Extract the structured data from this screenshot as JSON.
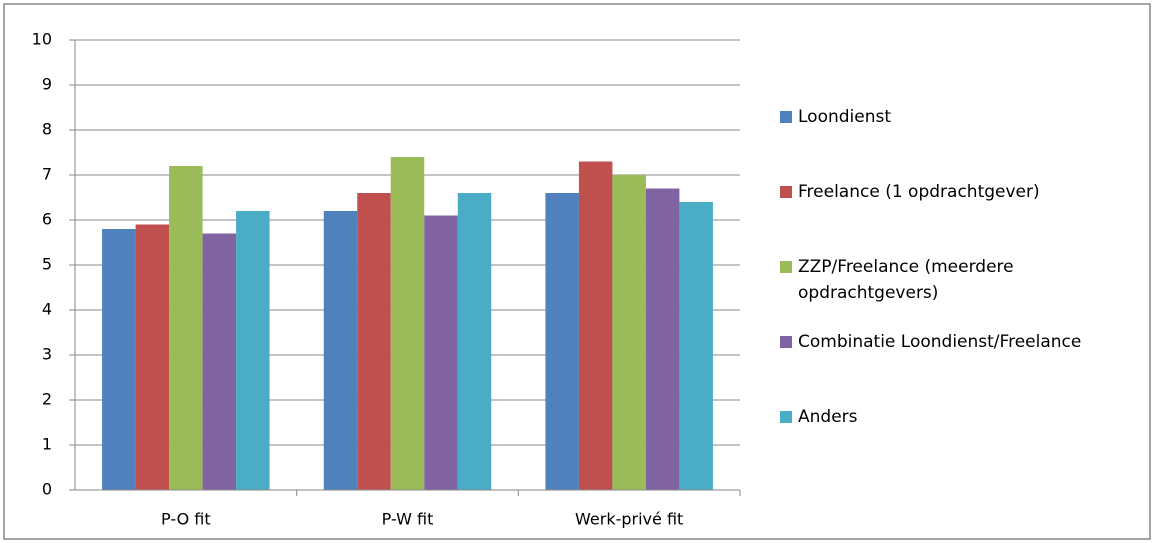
{
  "chart_data": {
    "type": "bar",
    "categories": [
      "P-O fit",
      "P-W fit",
      "Werk-privé fit"
    ],
    "series": [
      {
        "name": "Loondienst",
        "color": "#4f81bd",
        "values": [
          5.8,
          6.2,
          6.6
        ]
      },
      {
        "name": "Freelance (1 opdrachtgever)",
        "color": "#c0504d",
        "values": [
          5.9,
          6.6,
          7.3
        ]
      },
      {
        "name": "ZZP/Freelance (meerdere opdrachtgevers)",
        "color": "#9bbb59",
        "values": [
          7.2,
          7.4,
          7.0
        ]
      },
      {
        "name": "Combinatie Loondienst/Freelance",
        "color": "#8064a2",
        "values": [
          5.7,
          6.1,
          6.7
        ]
      },
      {
        "name": "Anders",
        "color": "#4bacc6",
        "values": [
          6.2,
          6.6,
          6.4
        ]
      }
    ],
    "ylim": [
      0,
      10
    ],
    "yticks": [
      0,
      1,
      2,
      3,
      4,
      5,
      6,
      7,
      8,
      9,
      10
    ],
    "grid": true,
    "legend": "right"
  }
}
